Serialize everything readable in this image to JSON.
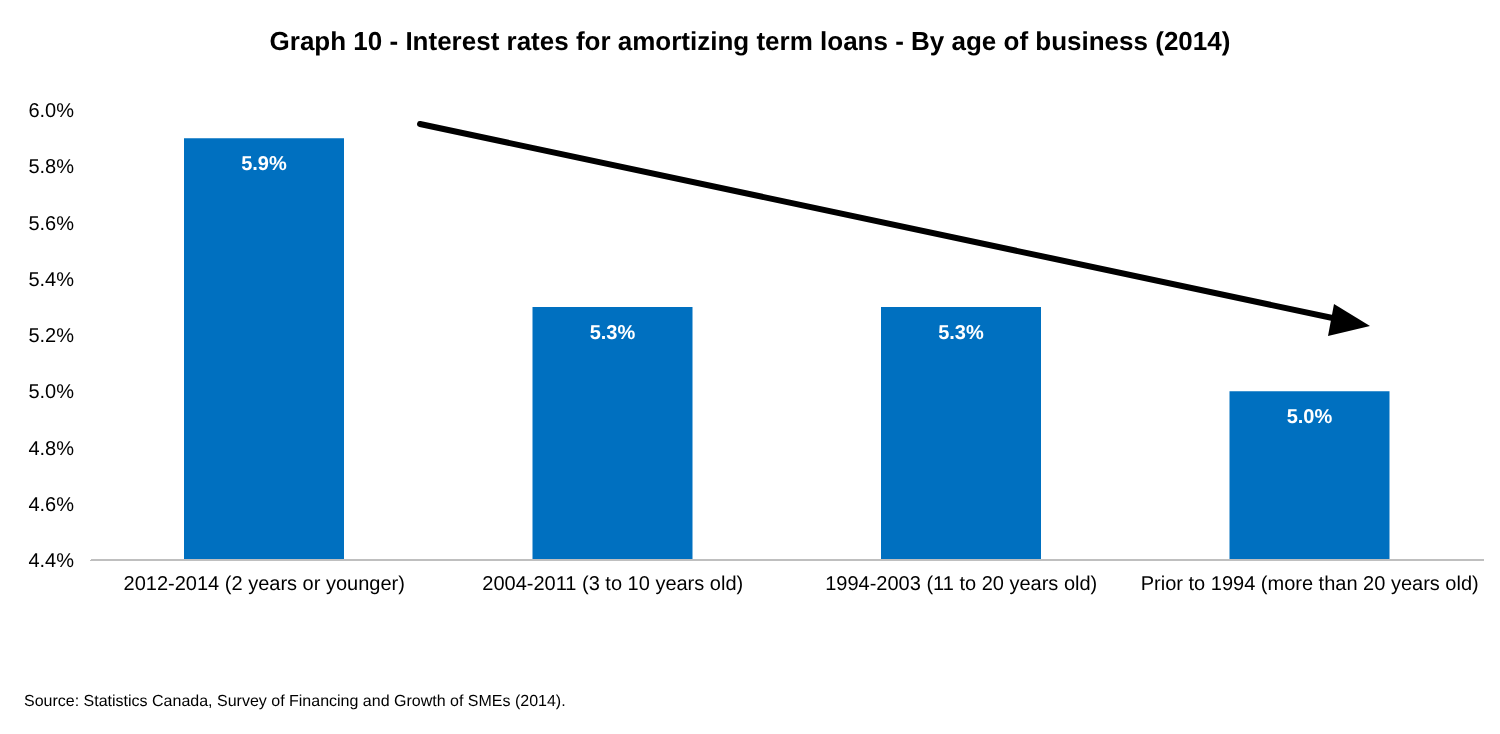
{
  "chart_data": {
    "type": "bar",
    "title": "Graph 10 - Interest rates for amortizing term loans - By age of business (2014)",
    "categories": [
      "2012-2014 (2 years or younger)",
      "2004-2011 (3 to 10 years old)",
      "1994-2003 (11 to 20 years old)",
      "Prior to 1994 (more than 20 years old)"
    ],
    "values": [
      5.9,
      5.3,
      5.3,
      5.0
    ],
    "value_labels": [
      "5.9%",
      "5.3%",
      "5.3%",
      "5.0%"
    ],
    "color": "#0070c0",
    "ylim": [
      4.4,
      6.0
    ],
    "yticks": [
      {
        "value": 4.4,
        "label": "4.4%"
      },
      {
        "value": 4.6,
        "label": "4.6%"
      },
      {
        "value": 4.8,
        "label": "4.8%"
      },
      {
        "value": 5.0,
        "label": "5.0%"
      },
      {
        "value": 5.2,
        "label": "5.2%"
      },
      {
        "value": 5.4,
        "label": "5.4%"
      },
      {
        "value": 5.6,
        "label": "5.6%"
      },
      {
        "value": 5.8,
        "label": "5.8%"
      },
      {
        "value": 6.0,
        "label": "6.0%"
      }
    ],
    "grid": false,
    "annotations": [
      "Source:  Statistics Canada, Survey of Financing and Growth of SMEs (2014)."
    ]
  }
}
